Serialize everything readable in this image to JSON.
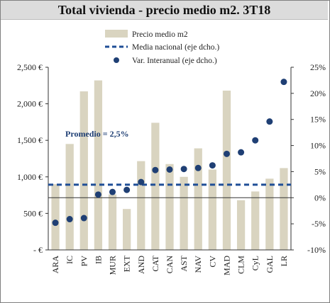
{
  "chart_data": {
    "type": "bar",
    "title": "Total vivienda - precio medio m2. 3T18",
    "categories": [
      "ARA",
      "IC",
      "PV",
      "IB",
      "MUR",
      "EXT",
      "AND",
      "CAT",
      "CAN",
      "AST",
      "NAV",
      "CV",
      "MAD",
      "CLM",
      "CyL",
      "GAL",
      "LR"
    ],
    "series": [
      {
        "name": "Precio medio m2",
        "axis": "left",
        "kind": "bar",
        "color": "#d9d4c0",
        "values": [
          900,
          1450,
          2170,
          2320,
          760,
          560,
          1215,
          1740,
          1175,
          1000,
          1390,
          1100,
          2180,
          680,
          800,
          975,
          1120
        ]
      },
      {
        "name": "Media nacional (eje dcho.)",
        "axis": "right",
        "kind": "dashed-line",
        "color": "#1f4e96",
        "value": 2.5
      },
      {
        "name": "Var. Interanual (eje dcho.)",
        "axis": "right",
        "kind": "marker",
        "color": "#1f3f74",
        "values": [
          -4.8,
          -4.1,
          -3.9,
          0.6,
          1.1,
          1.5,
          3.0,
          5.3,
          5.4,
          5.5,
          5.7,
          6.2,
          8.4,
          8.7,
          11.0,
          14.6,
          22.2
        ]
      }
    ],
    "y_left": {
      "ylim": [
        0,
        2500
      ],
      "ticks": [
        "-  €",
        "500 €",
        "1,000 €",
        "1,500 €",
        "2,000 €",
        "2,500 €"
      ],
      "tick_values": [
        0,
        500,
        1000,
        1500,
        2000,
        2500
      ]
    },
    "y_right": {
      "ylim": [
        -10,
        25
      ],
      "ticks": [
        "-10%",
        "-5%",
        "0%",
        "5%",
        "10%",
        "15%",
        "20%",
        "25%"
      ],
      "tick_values": [
        -10,
        -5,
        0,
        5,
        10,
        15,
        20,
        25
      ]
    },
    "annotation": "Promedio = 2,5%",
    "grid": false,
    "legend_position": "top-right"
  }
}
